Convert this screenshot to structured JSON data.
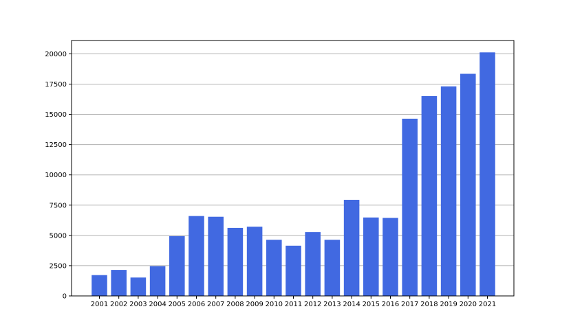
{
  "chart_data": {
    "type": "bar",
    "categories": [
      "2001",
      "2002",
      "2003",
      "2004",
      "2005",
      "2006",
      "2007",
      "2008",
      "2009",
      "2010",
      "2011",
      "2012",
      "2013",
      "2014",
      "2015",
      "2016",
      "2017",
      "2018",
      "2019",
      "2020",
      "2021"
    ],
    "values": [
      1720,
      2150,
      1520,
      2460,
      4940,
      6600,
      6540,
      5620,
      5720,
      4640,
      4150,
      5270,
      4640,
      7940,
      6480,
      6450,
      14640,
      16510,
      17310,
      18350,
      20120
    ],
    "title": "",
    "xlabel": "",
    "ylabel": "",
    "ylim": [
      0,
      21100
    ],
    "yticks": [
      0,
      2500,
      5000,
      7500,
      10000,
      12500,
      15000,
      17500,
      20000
    ],
    "grid": "y",
    "legend": "none",
    "bar_color": "#4169e1",
    "grid_color": "#b0b0b0"
  }
}
